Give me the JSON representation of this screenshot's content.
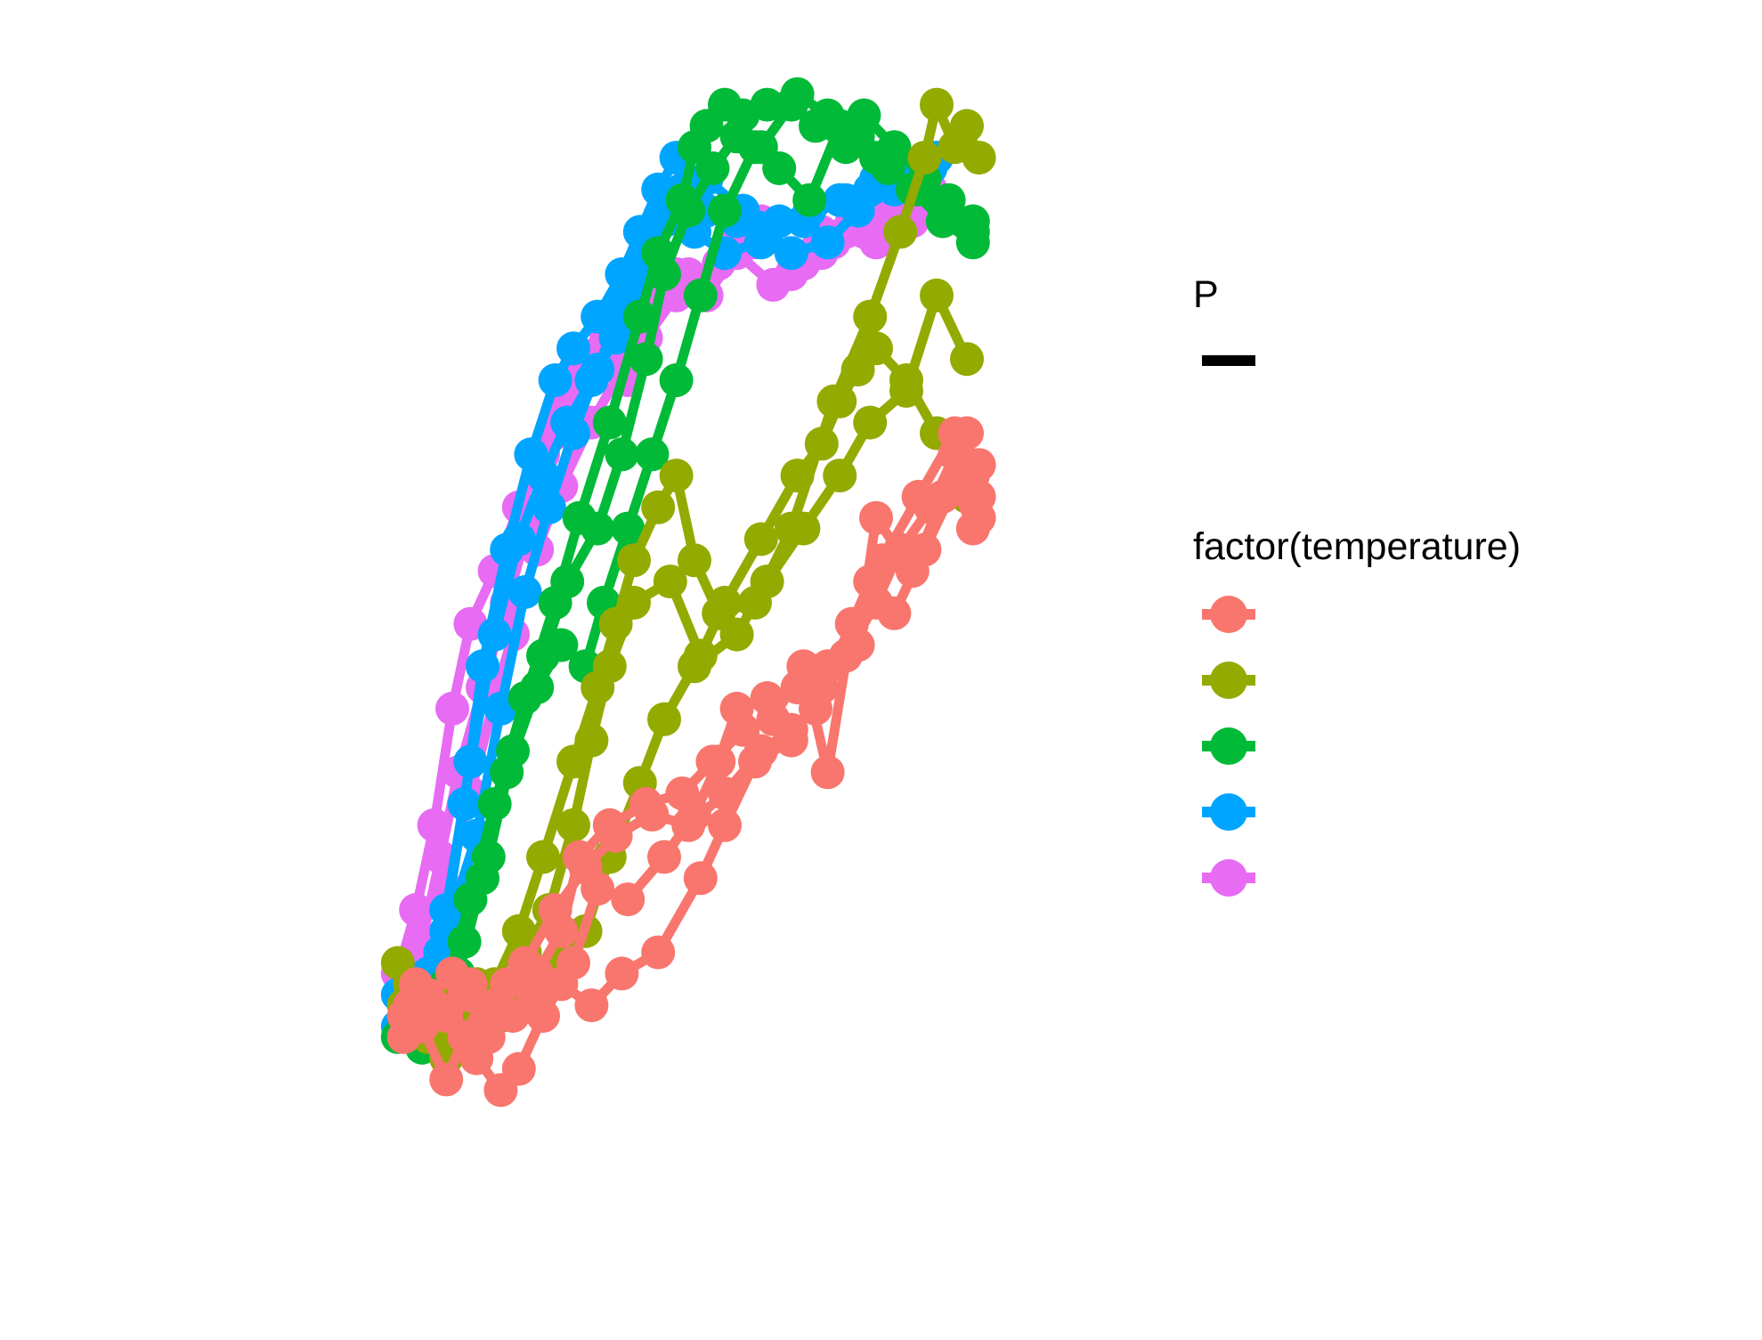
{
  "chart_data": {
    "type": "line",
    "title": "",
    "xlabel": "",
    "ylabel": "",
    "xlim": [
      0,
      100
    ],
    "ylim": [
      0,
      100
    ],
    "axes_visible": false,
    "grid": false,
    "markers": true,
    "legend_placement": "right",
    "legends": [
      {
        "title": "P",
        "kind": "linewidth",
        "entries": [
          ""
        ]
      },
      {
        "title": "factor(temperature)",
        "kind": "color",
        "entries": [
          "",
          "",
          "",
          "",
          ""
        ]
      }
    ],
    "series": [
      {
        "group": 1,
        "color": "#F8766D",
        "x": [
          3,
          5,
          9,
          12,
          14,
          18,
          21,
          25,
          28,
          33,
          38,
          44,
          51,
          55,
          60,
          66,
          71,
          76,
          81,
          87,
          93,
          97
        ],
        "y": [
          11,
          9,
          4,
          8,
          6,
          3,
          5,
          10,
          13,
          11,
          14,
          16,
          23,
          28,
          34,
          36,
          41,
          47,
          53,
          59,
          65,
          62
        ]
      },
      {
        "group": 1,
        "color": "#F8766D",
        "x": [
          2,
          6,
          10,
          15,
          19,
          24,
          30,
          34,
          39,
          45,
          50,
          54,
          57,
          62,
          67,
          72,
          77,
          80,
          86,
          91,
          95,
          97
        ],
        "y": [
          10,
          12,
          14,
          9,
          13,
          12,
          15,
          22,
          21,
          25,
          29,
          34,
          39,
          40,
          41,
          43,
          45,
          57,
          52,
          59,
          65,
          59
        ]
      },
      {
        "group": 1,
        "color": "#F8766D",
        "x": [
          4,
          7,
          12,
          16,
          20,
          24,
          28,
          31,
          36,
          42,
          48,
          53,
          58,
          63,
          68,
          72,
          76,
          79,
          83,
          88,
          93,
          96
        ],
        "y": [
          13,
          11,
          12,
          8,
          10,
          14,
          18,
          25,
          28,
          30,
          31,
          34,
          37,
          38,
          43,
          33,
          47,
          51,
          48,
          54,
          60,
          56
        ]
      },
      {
        "group": 1,
        "color": "#F8766D",
        "x": [
          2,
          5,
          9,
          13,
          17,
          22,
          27,
          32,
          37,
          43,
          49,
          55,
          61,
          66,
          70,
          75,
          80,
          84,
          89,
          93,
          96,
          97
        ],
        "y": [
          8,
          12,
          10,
          13,
          11,
          15,
          20,
          24,
          27,
          29,
          28,
          31,
          35,
          37,
          39,
          44,
          49,
          54,
          58,
          63,
          61,
          57
        ]
      },
      {
        "group": 2,
        "color": "#93AA00",
        "x": [
          1,
          5,
          9,
          12,
          17,
          21,
          25,
          30,
          34,
          37,
          40,
          44,
          47,
          50,
          54,
          60,
          66,
          73,
          79,
          84,
          88,
          90,
          93,
          95,
          97
        ],
        "y": [
          15,
          9,
          6,
          11,
          13,
          18,
          25,
          34,
          41,
          47,
          53,
          58,
          61,
          53,
          48,
          49,
          56,
          68,
          76,
          84,
          91,
          96,
          92,
          94,
          91
        ]
      },
      {
        "group": 2,
        "color": "#93AA00",
        "x": [
          3,
          7,
          11,
          15,
          18,
          22,
          26,
          30,
          33,
          36,
          40,
          46,
          51,
          55,
          61,
          67,
          71,
          74,
          77,
          80,
          85,
          90,
          95
        ],
        "y": [
          13,
          10,
          8,
          9,
          11,
          16,
          20,
          28,
          36,
          43,
          49,
          51,
          44,
          49,
          55,
          61,
          64,
          68,
          71,
          73,
          70,
          65,
          59
        ]
      },
      {
        "group": 2,
        "color": "#93AA00",
        "x": [
          2,
          6,
          10,
          14,
          18,
          23,
          28,
          32,
          36,
          41,
          45,
          50,
          57,
          62,
          68,
          74,
          79,
          85,
          90,
          95
        ],
        "y": [
          11,
          8,
          12,
          13,
          10,
          12,
          15,
          18,
          25,
          32,
          38,
          43,
          46,
          51,
          56,
          61,
          66,
          69,
          78,
          72
        ]
      },
      {
        "group": 3,
        "color": "#00BA38",
        "x": [
          2,
          5,
          9,
          13,
          17,
          22,
          27,
          31,
          36,
          41,
          44,
          48,
          50,
          52,
          55,
          58,
          62,
          67,
          72,
          77,
          82,
          87,
          92,
          96
        ],
        "y": [
          9,
          7,
          13,
          21,
          30,
          40,
          49,
          57,
          66,
          76,
          82,
          87,
          92,
          94,
          96,
          95,
          96,
          97,
          95,
          93,
          90,
          88,
          86,
          84
        ]
      },
      {
        "group": 3,
        "color": "#00BA38",
        "x": [
          3,
          7,
          12,
          16,
          20,
          25,
          29,
          34,
          38,
          42,
          45,
          49,
          53,
          57,
          61,
          66,
          70,
          75,
          80,
          86,
          91,
          96
        ],
        "y": [
          11,
          10,
          17,
          25,
          35,
          44,
          51,
          56,
          63,
          72,
          80,
          86,
          90,
          93,
          92,
          96,
          94,
          92,
          91,
          88,
          85,
          83
        ]
      },
      {
        "group": 3,
        "color": "#00BA38",
        "x": [
          1,
          6,
          11,
          15,
          19,
          24,
          28,
          32,
          35,
          39,
          43,
          47,
          51,
          55,
          60,
          64,
          69,
          74,
          78,
          83,
          88,
          92,
          96
        ],
        "y": [
          8,
          9,
          14,
          23,
          33,
          41,
          45,
          43,
          49,
          56,
          63,
          70,
          78,
          86,
          92,
          90,
          87,
          94,
          95,
          92,
          89,
          87,
          85
        ]
      },
      {
        "group": 4,
        "color": "#00A5FF",
        "x": [
          1,
          4,
          8,
          12,
          15,
          19,
          23,
          27,
          30,
          34,
          38,
          41,
          44,
          47,
          52,
          58,
          64,
          69,
          75,
          80,
          85,
          90
        ],
        "y": [
          12,
          10,
          16,
          30,
          43,
          54,
          63,
          70,
          73,
          76,
          80,
          84,
          88,
          91,
          89,
          86,
          85,
          86,
          87,
          89,
          90,
          91
        ]
      },
      {
        "group": 4,
        "color": "#00A5FF",
        "x": [
          2,
          6,
          9,
          13,
          17,
          21,
          25,
          29,
          33,
          37,
          40,
          43,
          46,
          50,
          55,
          61,
          66,
          72,
          77,
          83,
          89
        ],
        "y": [
          11,
          14,
          20,
          34,
          46,
          55,
          61,
          66,
          70,
          74,
          79,
          83,
          86,
          84,
          82,
          83,
          82,
          83,
          86,
          88,
          90
        ]
      },
      {
        "group": 4,
        "color": "#00A5FF",
        "x": [
          1,
          5,
          9,
          14,
          18,
          22,
          26,
          30,
          34,
          38,
          42,
          45,
          48,
          52,
          57,
          62,
          68,
          74,
          79,
          84,
          90
        ],
        "y": [
          9,
          13,
          18,
          27,
          39,
          50,
          58,
          65,
          71,
          77,
          81,
          85,
          88,
          86,
          85,
          84,
          85,
          87,
          88,
          89,
          91
        ]
      },
      {
        "group": 5,
        "color": "#E76BF3",
        "x": [
          1,
          4,
          7,
          10,
          13,
          17,
          21,
          25,
          28,
          32,
          36,
          40,
          44,
          49,
          54,
          60,
          66,
          71,
          76,
          80,
          85,
          89
        ],
        "y": [
          14,
          20,
          28,
          39,
          47,
          52,
          58,
          63,
          67,
          70,
          73,
          76,
          78,
          80,
          81,
          83,
          82,
          84,
          85,
          86,
          87,
          88
        ]
      },
      {
        "group": 5,
        "color": "#E76BF3",
        "x": [
          2,
          5,
          8,
          11,
          15,
          19,
          23,
          27,
          31,
          35,
          39,
          43,
          47,
          52,
          57,
          63,
          68,
          73,
          78,
          83,
          88
        ],
        "y": [
          12,
          17,
          25,
          33,
          41,
          49,
          57,
          65,
          72,
          75,
          70,
          77,
          80,
          78,
          82,
          79,
          81,
          83,
          84,
          85,
          86
        ]
      },
      {
        "group": 5,
        "color": "#E76BF3",
        "x": [
          3,
          6,
          9,
          13,
          17,
          20,
          24,
          28,
          33,
          38,
          42,
          47,
          51,
          56,
          61,
          66,
          71,
          75,
          80,
          86,
          90
        ],
        "y": [
          11,
          15,
          22,
          31,
          40,
          46,
          54,
          60,
          66,
          71,
          74,
          78,
          79,
          83,
          85,
          80,
          82,
          84,
          83,
          85,
          87
        ]
      }
    ]
  }
}
